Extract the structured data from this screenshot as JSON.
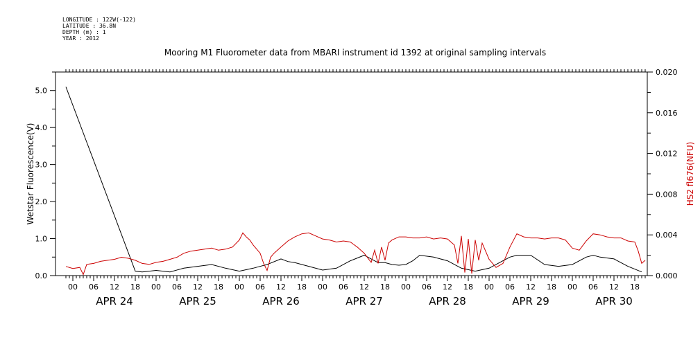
{
  "header": {
    "longitude": "LONGITUDE : 122W(-122)",
    "latitude": "LATITUDE : 36.8N",
    "depth": "DEPTH (m) : 1",
    "year": "YEAR : 2012"
  },
  "chart_data": {
    "type": "line",
    "title": "Mooring M1 Fluorometer data from MBARI instrument id 1392 at original sampling intervals",
    "grid": false,
    "x_unit": "hours since 2012-04-23 22:00",
    "xlim": [
      0,
      167
    ],
    "x_hour_ticks": [
      "00",
      "06",
      "12",
      "18",
      "00",
      "06",
      "12",
      "18",
      "00",
      "06",
      "12",
      "18",
      "00",
      "06",
      "12",
      "18",
      "00",
      "06",
      "12",
      "18",
      "00",
      "06",
      "12",
      "18",
      "00",
      "06",
      "12",
      "18"
    ],
    "x_day_labels": [
      "APR 24",
      "APR 25",
      "APR 26",
      "APR 27",
      "APR 28",
      "APR 29",
      "APR 30"
    ],
    "left_axis": {
      "label": "Wetstar Fluorescence(V)",
      "ylim": [
        0,
        5.5
      ],
      "tick_labels": [
        "0.0",
        "1.0",
        "2.0",
        "3.0",
        "4.0",
        "5.0"
      ],
      "color": "#000000"
    },
    "right_axis": {
      "label": "HS2 fl676(NFU)",
      "ylim": [
        0,
        0.02
      ],
      "tick_labels": [
        "0.000",
        "0.004",
        "0.008",
        "0.012",
        "0.016",
        "0.020"
      ],
      "color": "#cc0000"
    },
    "series": [
      {
        "axis": "left",
        "color": "#000000",
        "x": [
          0,
          20,
          22,
          26,
          30,
          34,
          38,
          42,
          46,
          50,
          54,
          58,
          62,
          64,
          66,
          70,
          74,
          78,
          82,
          86,
          88,
          90,
          92,
          94,
          96,
          98,
          100,
          102,
          106,
          110,
          114,
          118,
          122,
          126,
          128,
          130,
          134,
          138,
          142,
          146,
          150,
          152,
          154,
          158,
          162,
          166
        ],
        "y": [
          5.1,
          0.12,
          0.1,
          0.14,
          0.1,
          0.2,
          0.25,
          0.3,
          0.2,
          0.12,
          0.2,
          0.3,
          0.45,
          0.38,
          0.35,
          0.25,
          0.15,
          0.2,
          0.4,
          0.55,
          0.45,
          0.35,
          0.35,
          0.3,
          0.28,
          0.3,
          0.4,
          0.55,
          0.5,
          0.4,
          0.2,
          0.12,
          0.2,
          0.4,
          0.5,
          0.55,
          0.55,
          0.3,
          0.25,
          0.3,
          0.5,
          0.55,
          0.5,
          0.45,
          0.25,
          0.1
        ]
      },
      {
        "axis": "right",
        "color": "#cc0000",
        "x": [
          0,
          2,
          4,
          5,
          6,
          8,
          10,
          12,
          14,
          16,
          18,
          20,
          22,
          24,
          26,
          28,
          30,
          32,
          34,
          36,
          38,
          40,
          42,
          44,
          46,
          48,
          50,
          51,
          52,
          53,
          54,
          55,
          56,
          57,
          58,
          59,
          60,
          62,
          64,
          66,
          68,
          70,
          72,
          74,
          76,
          78,
          80,
          82,
          84,
          86,
          88,
          89,
          90,
          91,
          92,
          93,
          94,
          96,
          98,
          100,
          102,
          104,
          106,
          108,
          110,
          112,
          113,
          114,
          115,
          116,
          117,
          118,
          119,
          120,
          122,
          124,
          126,
          128,
          130,
          132,
          134,
          136,
          138,
          140,
          142,
          144,
          146,
          148,
          150,
          152,
          154,
          156,
          158,
          160,
          162,
          164,
          165,
          166,
          167
        ],
        "y": [
          0.0009,
          0.0007,
          0.0008,
          0.0001,
          0.0011,
          0.0012,
          0.0014,
          0.0015,
          0.0016,
          0.0018,
          0.0017,
          0.0015,
          0.0012,
          0.0011,
          0.0013,
          0.0014,
          0.0016,
          0.0018,
          0.0022,
          0.0024,
          0.0025,
          0.0026,
          0.0027,
          0.0025,
          0.0026,
          0.0028,
          0.0035,
          0.0042,
          0.0038,
          0.0035,
          0.003,
          0.0026,
          0.0022,
          0.0012,
          0.0005,
          0.0018,
          0.0022,
          0.0028,
          0.0034,
          0.0038,
          0.0041,
          0.0042,
          0.0039,
          0.0036,
          0.0035,
          0.0033,
          0.0034,
          0.0033,
          0.0028,
          0.0022,
          0.0013,
          0.0025,
          0.0012,
          0.0028,
          0.0015,
          0.0032,
          0.0035,
          0.0038,
          0.0038,
          0.0037,
          0.0037,
          0.0038,
          0.0036,
          0.0037,
          0.0036,
          0.003,
          0.0012,
          0.0039,
          0.0003,
          0.0036,
          0.0002,
          0.0035,
          0.0015,
          0.0032,
          0.0016,
          0.0008,
          0.0012,
          0.0028,
          0.0041,
          0.0038,
          0.0037,
          0.0037,
          0.0036,
          0.0037,
          0.0037,
          0.0035,
          0.0027,
          0.0025,
          0.0034,
          0.0041,
          0.004,
          0.0038,
          0.0037,
          0.0037,
          0.0034,
          0.0033,
          0.0024,
          0.0012,
          0.0015
        ]
      }
    ]
  }
}
